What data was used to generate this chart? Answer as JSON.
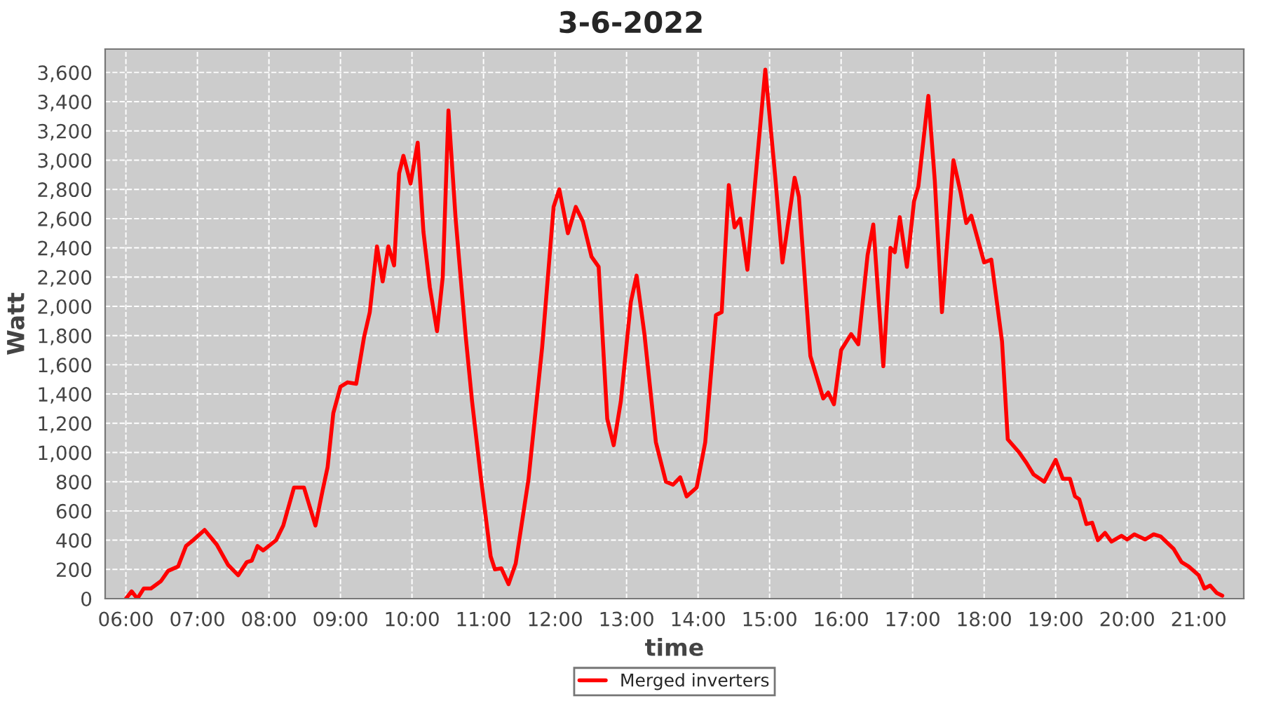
{
  "chart_data": {
    "type": "line",
    "title": "3-6-2022",
    "xlabel": "time",
    "ylabel": "Watt",
    "x": [
      6.0,
      6.08,
      6.16,
      6.25,
      6.35,
      6.49,
      6.59,
      6.73,
      6.84,
      6.94,
      7.1,
      7.27,
      7.43,
      7.57,
      7.69,
      7.76,
      7.84,
      7.92,
      8.1,
      8.2,
      8.35,
      8.49,
      8.65,
      8.75,
      8.82,
      8.9,
      9.0,
      9.1,
      9.22,
      9.33,
      9.41,
      9.51,
      9.59,
      9.67,
      9.75,
      9.82,
      9.88,
      9.98,
      10.08,
      10.16,
      10.25,
      10.35,
      10.43,
      10.51,
      10.61,
      10.75,
      10.84,
      10.96,
      11.1,
      11.16,
      11.25,
      11.35,
      11.45,
      11.63,
      11.82,
      11.98,
      12.06,
      12.18,
      12.29,
      12.39,
      12.51,
      12.61,
      12.73,
      12.82,
      12.92,
      13.06,
      13.14,
      13.25,
      13.41,
      13.55,
      13.65,
      13.75,
      13.84,
      13.98,
      14.1,
      14.25,
      14.33,
      14.43,
      14.51,
      14.59,
      14.69,
      14.82,
      14.94,
      15.08,
      15.18,
      15.35,
      15.41,
      15.57,
      15.75,
      15.82,
      15.9,
      16.0,
      16.14,
      16.24,
      16.37,
      16.45,
      16.59,
      16.69,
      16.75,
      16.82,
      16.92,
      17.02,
      17.08,
      17.22,
      17.31,
      17.41,
      17.57,
      17.67,
      17.75,
      17.82,
      18.0,
      18.1,
      18.25,
      18.33,
      18.49,
      18.59,
      18.69,
      18.84,
      19.0,
      19.1,
      19.2,
      19.27,
      19.33,
      19.43,
      19.51,
      19.59,
      19.69,
      19.78,
      19.92,
      20.0,
      20.1,
      20.25,
      20.37,
      20.47,
      20.65,
      20.76,
      20.86,
      21.0,
      21.08,
      21.16,
      21.25,
      21.33
    ],
    "series": [
      {
        "name": "Merged inverters",
        "color": "#ff0000",
        "values": [
          0,
          50,
          0,
          70,
          70,
          120,
          190,
          220,
          360,
          400,
          470,
          370,
          230,
          160,
          250,
          260,
          360,
          330,
          400,
          500,
          760,
          760,
          500,
          740,
          900,
          1270,
          1450,
          1480,
          1470,
          1790,
          1960,
          2410,
          2170,
          2410,
          2280,
          2910,
          3030,
          2840,
          3120,
          2510,
          2130,
          1830,
          2200,
          3340,
          2600,
          1800,
          1350,
          840,
          290,
          200,
          207,
          99,
          240,
          820,
          1720,
          2680,
          2800,
          2500,
          2680,
          2580,
          2340,
          2270,
          1230,
          1050,
          1350,
          2030,
          2210,
          1810,
          1070,
          800,
          780,
          830,
          700,
          760,
          1070,
          1940,
          1960,
          2830,
          2540,
          2600,
          2250,
          2970,
          3620,
          2880,
          2300,
          2880,
          2750,
          1660,
          1370,
          1410,
          1330,
          1700,
          1810,
          1740,
          2350,
          2560,
          1590,
          2400,
          2370,
          2610,
          2270,
          2720,
          2820,
          3440,
          2860,
          1960,
          3000,
          2780,
          2570,
          2620,
          2300,
          2320,
          1760,
          1090,
          1000,
          930,
          850,
          800,
          950,
          820,
          820,
          700,
          680,
          510,
          520,
          400,
          450,
          390,
          430,
          405,
          440,
          405,
          440,
          425,
          340,
          250,
          220,
          160,
          70,
          90,
          40,
          20
        ]
      }
    ],
    "xlim": [
      5.71,
      21.63
    ],
    "xticks": [
      {
        "value": 6,
        "label": "06:00"
      },
      {
        "value": 7,
        "label": "07:00"
      },
      {
        "value": 8,
        "label": "08:00"
      },
      {
        "value": 9,
        "label": "09:00"
      },
      {
        "value": 10,
        "label": "10:00"
      },
      {
        "value": 11,
        "label": "11:00"
      },
      {
        "value": 12,
        "label": "12:00"
      },
      {
        "value": 13,
        "label": "13:00"
      },
      {
        "value": 14,
        "label": "14:00"
      },
      {
        "value": 15,
        "label": "15:00"
      },
      {
        "value": 16,
        "label": "16:00"
      },
      {
        "value": 17,
        "label": "17:00"
      },
      {
        "value": 18,
        "label": "18:00"
      },
      {
        "value": 19,
        "label": "19:00"
      },
      {
        "value": 20,
        "label": "20:00"
      },
      {
        "value": 21,
        "label": "21:00"
      }
    ],
    "ylim": [
      0,
      3760
    ],
    "yticks": [
      {
        "value": 0,
        "label": "0"
      },
      {
        "value": 200,
        "label": "200"
      },
      {
        "value": 400,
        "label": "400"
      },
      {
        "value": 600,
        "label": "600"
      },
      {
        "value": 800,
        "label": "800"
      },
      {
        "value": 1000,
        "label": "1,000"
      },
      {
        "value": 1200,
        "label": "1,200"
      },
      {
        "value": 1400,
        "label": "1,400"
      },
      {
        "value": 1600,
        "label": "1,600"
      },
      {
        "value": 1800,
        "label": "1,800"
      },
      {
        "value": 2000,
        "label": "2,000"
      },
      {
        "value": 2200,
        "label": "2,200"
      },
      {
        "value": 2400,
        "label": "2,400"
      },
      {
        "value": 2600,
        "label": "2,600"
      },
      {
        "value": 2800,
        "label": "2,800"
      },
      {
        "value": 3000,
        "label": "3,000"
      },
      {
        "value": 3200,
        "label": "3,200"
      },
      {
        "value": 3400,
        "label": "3,400"
      },
      {
        "value": 3600,
        "label": "3,600"
      }
    ],
    "grid": true,
    "legend": "bottom"
  }
}
